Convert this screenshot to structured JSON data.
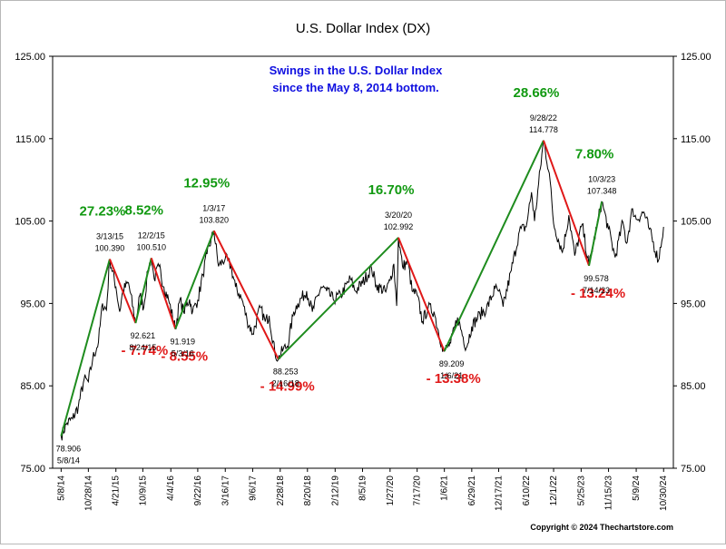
{
  "chart_data": {
    "type": "line",
    "title": "U.S. Dollar Index (DX)",
    "annotation": [
      "Swings in the U.S. Dollar Index",
      "since the May 8, 2014 bottom."
    ],
    "copyright": "Copyright © 2024 Thechartstore.com",
    "xlabel": "",
    "ylabel": "",
    "ylim": [
      75,
      125
    ],
    "y_ticks": [
      "75.00",
      "85.00",
      "95.00",
      "105.00",
      "115.00",
      "125.00"
    ],
    "y_axis_sides": "both",
    "grid": false,
    "xlim": [
      "2014-03-15",
      "2024-12-31"
    ],
    "x_ticks": [
      "5/8/14",
      "10/28/14",
      "4/21/15",
      "10/9/15",
      "4/4/16",
      "9/22/16",
      "3/16/17",
      "9/6/17",
      "2/28/18",
      "8/20/18",
      "2/12/19",
      "8/5/19",
      "1/27/20",
      "7/17/20",
      "1/6/21",
      "6/29/21",
      "12/17/21",
      "6/10/22",
      "12/1/22",
      "5/25/23",
      "11/15/23",
      "5/9/24",
      "10/30/24"
    ],
    "swing_points": [
      {
        "date": "2014-05-08",
        "value": 78.906,
        "value_label": "78.906",
        "date_label": "5/8/14",
        "pos": "below"
      },
      {
        "date": "2015-03-13",
        "value": 100.39,
        "value_label": "100.390",
        "date_label": "3/13/15",
        "pos": "above"
      },
      {
        "date": "2015-08-24",
        "value": 92.621,
        "value_label": "92.621",
        "date_label": "8/24/15",
        "pos": "below"
      },
      {
        "date": "2015-12-02",
        "value": 100.51,
        "value_label": "100.510",
        "date_label": "12/2/15",
        "pos": "above"
      },
      {
        "date": "2016-05-03",
        "value": 91.919,
        "value_label": "91.919",
        "date_label": "5/3/16",
        "pos": "below"
      },
      {
        "date": "2017-01-03",
        "value": 103.82,
        "value_label": "103.820",
        "date_label": "1/3/17",
        "pos": "above"
      },
      {
        "date": "2018-02-16",
        "value": 88.253,
        "value_label": "88.253",
        "date_label": "2/16/18",
        "pos": "below"
      },
      {
        "date": "2020-03-20",
        "value": 102.992,
        "value_label": "102.992",
        "date_label": "3/20/20",
        "pos": "above"
      },
      {
        "date": "2021-01-06",
        "value": 89.209,
        "value_label": "89.209",
        "date_label": "1/6/21",
        "pos": "below"
      },
      {
        "date": "2022-09-28",
        "value": 114.778,
        "value_label": "114.778",
        "date_label": "9/28/22",
        "pos": "above"
      },
      {
        "date": "2023-07-14",
        "value": 99.578,
        "value_label": "99.578",
        "date_label": "7/14/23",
        "pos": "below"
      },
      {
        "date": "2023-10-03",
        "value": 107.348,
        "value_label": "107.348",
        "date_label": "10/3/23",
        "pos": "above"
      }
    ],
    "swings": [
      {
        "label": "27.23%",
        "direction": "up"
      },
      {
        "label": "- 7.74%",
        "direction": "down"
      },
      {
        "label": "8.52%",
        "direction": "up"
      },
      {
        "label": "- 8.55%",
        "direction": "down"
      },
      {
        "label": "12.95%",
        "direction": "up"
      },
      {
        "label": "- 14.99%",
        "direction": "down"
      },
      {
        "label": "16.70%",
        "direction": "up"
      },
      {
        "label": "- 13.38%",
        "direction": "down"
      },
      {
        "label": "28.66%",
        "direction": "up"
      },
      {
        "label": "- 13.24%",
        "direction": "down"
      },
      {
        "label": "7.80%",
        "direction": "up"
      }
    ],
    "price_series": [
      [
        "2014-05-08",
        78.906
      ],
      [
        "2014-06-15",
        80.5
      ],
      [
        "2014-07-20",
        81.0
      ],
      [
        "2014-08-25",
        82.5
      ],
      [
        "2014-10-01",
        85.8
      ],
      [
        "2014-10-28",
        85.5
      ],
      [
        "2014-11-25",
        88.3
      ],
      [
        "2014-12-31",
        90.3
      ],
      [
        "2015-01-26",
        95.0
      ],
      [
        "2015-02-20",
        94.2
      ],
      [
        "2015-03-13",
        100.39
      ],
      [
        "2015-04-21",
        97.0
      ],
      [
        "2015-05-15",
        94.0
      ],
      [
        "2015-06-05",
        96.6
      ],
      [
        "2015-07-10",
        97.5
      ],
      [
        "2015-08-24",
        92.621
      ],
      [
        "2015-09-20",
        96.0
      ],
      [
        "2015-10-15",
        94.5
      ],
      [
        "2015-11-10",
        99.0
      ],
      [
        "2015-12-02",
        100.51
      ],
      [
        "2015-12-20",
        98.0
      ],
      [
        "2016-01-20",
        99.5
      ],
      [
        "2016-02-20",
        97.0
      ],
      [
        "2016-03-20",
        95.5
      ],
      [
        "2016-05-03",
        91.919
      ],
      [
        "2016-06-01",
        95.5
      ],
      [
        "2016-06-24",
        94.0
      ],
      [
        "2016-08-01",
        95.5
      ],
      [
        "2016-08-20",
        94.0
      ],
      [
        "2016-09-22",
        95.4
      ],
      [
        "2016-10-25",
        98.5
      ],
      [
        "2016-11-20",
        101.0
      ],
      [
        "2017-01-03",
        103.82
      ],
      [
        "2017-02-01",
        99.5
      ],
      [
        "2017-03-16",
        100.5
      ],
      [
        "2017-04-20",
        99.5
      ],
      [
        "2017-05-20",
        97.0
      ],
      [
        "2017-06-30",
        95.5
      ],
      [
        "2017-08-01",
        93.0
      ],
      [
        "2017-09-06",
        91.3
      ],
      [
        "2017-10-25",
        94.5
      ],
      [
        "2017-11-25",
        92.8
      ],
      [
        "2017-12-20",
        93.5
      ],
      [
        "2018-01-25",
        89.0
      ],
      [
        "2018-02-16",
        88.253
      ],
      [
        "2018-03-20",
        89.5
      ],
      [
        "2018-04-15",
        89.8
      ],
      [
        "2018-05-25",
        94.0
      ],
      [
        "2018-06-20",
        95.0
      ],
      [
        "2018-08-15",
        96.5
      ],
      [
        "2018-09-20",
        94.0
      ],
      [
        "2018-11-15",
        97.0
      ],
      [
        "2018-12-20",
        96.5
      ],
      [
        "2019-01-31",
        95.5
      ],
      [
        "2019-03-20",
        96.0
      ],
      [
        "2019-05-20",
        98.0
      ],
      [
        "2019-06-20",
        96.5
      ],
      [
        "2019-08-05",
        97.5
      ],
      [
        "2019-10-01",
        99.3
      ],
      [
        "2019-11-01",
        97.2
      ],
      [
        "2019-12-31",
        96.4
      ],
      [
        "2020-01-27",
        97.8
      ],
      [
        "2020-02-20",
        99.8
      ],
      [
        "2020-03-09",
        94.7
      ],
      [
        "2020-03-20",
        102.992
      ],
      [
        "2020-04-15",
        99.5
      ],
      [
        "2020-05-20",
        100.0
      ],
      [
        "2020-06-15",
        96.5
      ],
      [
        "2020-07-17",
        96.0
      ],
      [
        "2020-08-20",
        92.8
      ],
      [
        "2020-09-25",
        94.5
      ],
      [
        "2020-11-01",
        94.0
      ],
      [
        "2020-12-20",
        90.0
      ],
      [
        "2021-01-06",
        89.209
      ],
      [
        "2021-02-15",
        90.2
      ],
      [
        "2021-03-31",
        93.3
      ],
      [
        "2021-05-25",
        89.6
      ],
      [
        "2021-06-29",
        92.2
      ],
      [
        "2021-08-20",
        93.7
      ],
      [
        "2021-09-30",
        94.3
      ],
      [
        "2021-11-24",
        96.8
      ],
      [
        "2021-12-17",
        96.5
      ],
      [
        "2022-01-14",
        94.6
      ],
      [
        "2022-03-07",
        99.0
      ],
      [
        "2022-04-28",
        103.8
      ],
      [
        "2022-06-10",
        104.3
      ],
      [
        "2022-07-14",
        108.5
      ],
      [
        "2022-08-02",
        105.0
      ],
      [
        "2022-09-28",
        114.778
      ],
      [
        "2022-11-04",
        110.8
      ],
      [
        "2022-12-01",
        104.7
      ],
      [
        "2023-01-26",
        101.2
      ],
      [
        "2023-03-08",
        105.7
      ],
      [
        "2023-04-14",
        100.8
      ],
      [
        "2023-05-31",
        104.6
      ],
      [
        "2023-07-14",
        99.578
      ],
      [
        "2023-09-01",
        104.3
      ],
      [
        "2023-10-03",
        107.348
      ],
      [
        "2023-11-15",
        104.0
      ],
      [
        "2023-12-27",
        100.6
      ],
      [
        "2024-02-14",
        104.9
      ],
      [
        "2024-03-08",
        102.3
      ],
      [
        "2024-04-16",
        106.5
      ],
      [
        "2024-05-09",
        105.2
      ],
      [
        "2024-06-26",
        106.1
      ],
      [
        "2024-07-31",
        104.0
      ],
      [
        "2024-09-27",
        100.2
      ],
      [
        "2024-10-30",
        104.3
      ]
    ]
  }
}
